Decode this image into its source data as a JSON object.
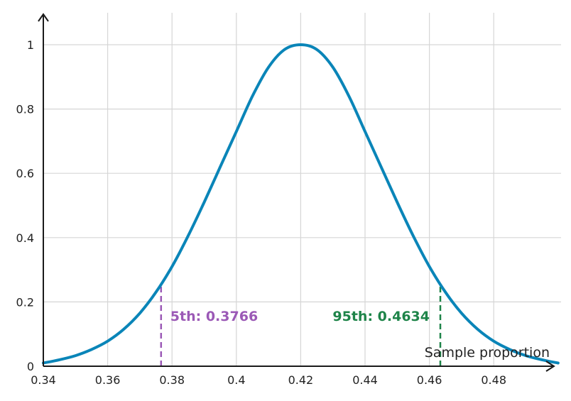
{
  "chart_data": {
    "type": "line",
    "title": "",
    "xlabel": "Sample proportion",
    "ylabel": "",
    "xlim": [
      0.34,
      0.5
    ],
    "ylim": [
      0,
      1.1
    ],
    "grid": true,
    "x_ticks": [
      {
        "value": 0.34,
        "label": "0.34"
      },
      {
        "value": 0.36,
        "label": "0.36"
      },
      {
        "value": 0.38,
        "label": "0.38"
      },
      {
        "value": 0.4,
        "label": "0.4"
      },
      {
        "value": 0.42,
        "label": "0.42"
      },
      {
        "value": 0.44,
        "label": "0.44"
      },
      {
        "value": 0.46,
        "label": "0.46"
      },
      {
        "value": 0.48,
        "label": "0.48"
      }
    ],
    "y_ticks": [
      {
        "value": 0,
        "label": "0"
      },
      {
        "value": 0.2,
        "label": "0.2"
      },
      {
        "value": 0.4,
        "label": "0.4"
      },
      {
        "value": 0.6,
        "label": "0.6"
      },
      {
        "value": 0.8,
        "label": "0.8"
      },
      {
        "value": 1,
        "label": "1"
      }
    ],
    "series": [
      {
        "color": "#0a85b8",
        "x": [
          0.34,
          0.345,
          0.35,
          0.355,
          0.36,
          0.365,
          0.37,
          0.375,
          0.38,
          0.385,
          0.39,
          0.395,
          0.4,
          0.405,
          0.41,
          0.415,
          0.42,
          0.425,
          0.43,
          0.435,
          0.44,
          0.445,
          0.45,
          0.455,
          0.46,
          0.465,
          0.47,
          0.475,
          0.48,
          0.485,
          0.49,
          0.495,
          0.5
        ],
        "y": [
          0.01,
          0.02,
          0.033,
          0.052,
          0.078,
          0.115,
          0.165,
          0.23,
          0.31,
          0.405,
          0.51,
          0.62,
          0.73,
          0.84,
          0.93,
          0.985,
          1.0,
          0.985,
          0.93,
          0.84,
          0.73,
          0.62,
          0.51,
          0.405,
          0.31,
          0.23,
          0.165,
          0.115,
          0.078,
          0.052,
          0.033,
          0.02,
          0.01
        ]
      }
    ],
    "annotations": [
      {
        "name": "5th-percentile",
        "x": 0.3766,
        "label": "5th: 0.3766",
        "color": "#9b59b6"
      },
      {
        "name": "95th-percentile",
        "x": 0.4634,
        "label": "95th: 0.4634",
        "color": "#1e8449"
      }
    ]
  }
}
